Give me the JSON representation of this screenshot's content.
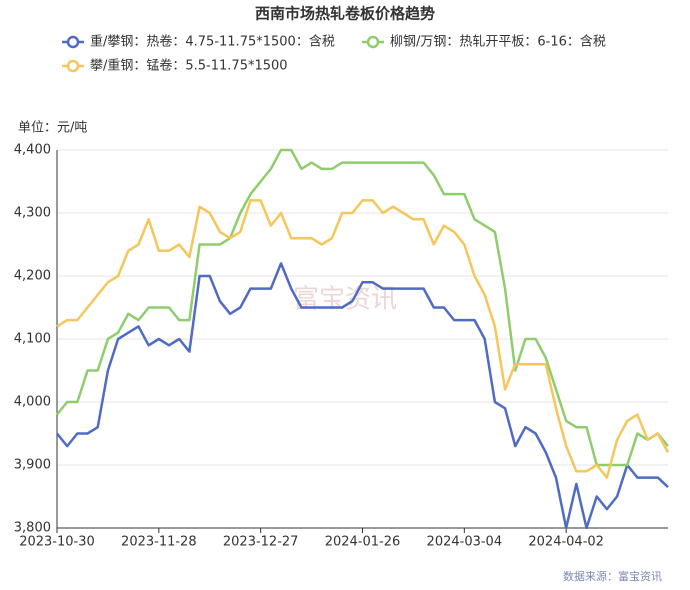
{
  "chart_data": {
    "type": "line",
    "title": "西南市场热轧卷板价格趋势",
    "y_unit": "单位：元/吨",
    "watermark": "富宝资讯",
    "source": "数据来源：富宝资讯",
    "categories": [
      "2023-10-30",
      null,
      null,
      null,
      null,
      null,
      null,
      null,
      null,
      null,
      "2023-11-28",
      null,
      null,
      null,
      null,
      null,
      null,
      null,
      null,
      null,
      "2023-12-27",
      null,
      null,
      null,
      null,
      null,
      null,
      null,
      null,
      null,
      "2024-01-26",
      null,
      null,
      null,
      null,
      null,
      null,
      null,
      null,
      null,
      "2024-03-04",
      null,
      null,
      null,
      null,
      null,
      null,
      null,
      null,
      null,
      "2024-04-02",
      null,
      null,
      null,
      null,
      null,
      null,
      null,
      null,
      null,
      null
    ],
    "ylim": [
      3800,
      4400
    ],
    "yticks": [
      {
        "value": 3800,
        "label": "3,800"
      },
      {
        "value": 3900,
        "label": "3,900"
      },
      {
        "value": 4000,
        "label": "4,000"
      },
      {
        "value": 4100,
        "label": "4,100"
      },
      {
        "value": 4200,
        "label": "4,200"
      },
      {
        "value": 4300,
        "label": "4,300"
      },
      {
        "value": 4400,
        "label": "4,400"
      }
    ],
    "grid": true,
    "series": [
      {
        "name": "重/攀钢：热卷：4.75-11.75*1500：含税",
        "color": "#4f6bc4",
        "values": [
          3950,
          3930,
          3950,
          3950,
          3960,
          4050,
          4100,
          4110,
          4120,
          4090,
          4100,
          4090,
          4100,
          4080,
          4200,
          4200,
          4160,
          4140,
          4150,
          4180,
          4180,
          4180,
          4220,
          4180,
          4150,
          4150,
          4150,
          4150,
          4150,
          4160,
          4190,
          4190,
          4180,
          4180,
          4180,
          4180,
          4180,
          4150,
          4150,
          4130,
          4130,
          4130,
          4100,
          4000,
          3990,
          3930,
          3960,
          3950,
          3920,
          3880,
          3800,
          3870,
          3800,
          3850,
          3830,
          3850,
          3900,
          3880,
          3880,
          3880,
          3865
        ]
      },
      {
        "name": "柳钢/万钢：热轧开平板：6-16：含税",
        "color": "#8fcd6c",
        "values": [
          3980,
          4000,
          4000,
          4050,
          4050,
          4100,
          4110,
          4140,
          4130,
          4150,
          4150,
          4150,
          4130,
          4130,
          4250,
          4250,
          4250,
          4260,
          4300,
          4330,
          4350,
          4370,
          4400,
          4400,
          4370,
          4380,
          4370,
          4370,
          4380,
          4380,
          4380,
          4380,
          4380,
          4380,
          4380,
          4380,
          4380,
          4360,
          4330,
          4330,
          4330,
          4290,
          4280,
          4270,
          4180,
          4050,
          4100,
          4100,
          4070,
          4020,
          3970,
          3960,
          3960,
          3900,
          3900,
          3900,
          3900,
          3950,
          3940,
          3950,
          3930
        ]
      },
      {
        "name": "攀/重钢：锰卷：5.5-11.75*1500",
        "color": "#f5c65a",
        "values": [
          4120,
          4130,
          4130,
          4150,
          4170,
          4190,
          4200,
          4240,
          4250,
          4290,
          4240,
          4240,
          4250,
          4230,
          4310,
          4300,
          4270,
          4260,
          4270,
          4320,
          4320,
          4280,
          4300,
          4260,
          4260,
          4260,
          4250,
          4260,
          4300,
          4300,
          4320,
          4320,
          4300,
          4310,
          4300,
          4290,
          4290,
          4250,
          4280,
          4270,
          4250,
          4200,
          4170,
          4120,
          4020,
          4060,
          4060,
          4060,
          4060,
          3990,
          3930,
          3890,
          3890,
          3900,
          3880,
          3940,
          3970,
          3980,
          3940,
          3950,
          3920
        ]
      }
    ]
  }
}
